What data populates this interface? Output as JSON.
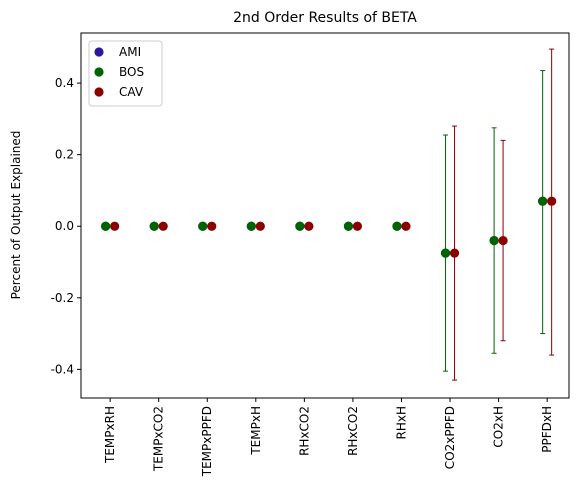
{
  "chart_data": {
    "type": "scatter",
    "title": "2nd Order Results of BETA",
    "xlabel": "",
    "ylabel": "Percent of Output Explained",
    "categories": [
      "TEMPxRH",
      "TEMPxCO2",
      "TEMPxPPFD",
      "TEMPxH",
      "RHxCO2",
      "RHxCO2",
      "RHxH",
      "CO2xPPFD",
      "CO2xH",
      "PPFDxH"
    ],
    "ylim": [
      -0.48,
      0.54
    ],
    "yticks": [
      "-0.4",
      "-0.2",
      "0.0",
      "0.2",
      "0.4"
    ],
    "legend_position": "top-left",
    "grid": false,
    "series": [
      {
        "name": "AMI",
        "color": "#2a1a9a",
        "values": [
          0,
          0,
          0,
          0,
          0,
          0,
          0,
          -0.075,
          -0.04,
          0.07
        ],
        "lower": [
          0,
          0,
          0,
          0,
          0,
          0,
          0,
          -0.075,
          -0.04,
          0.07
        ],
        "upper": [
          0,
          0,
          0,
          0,
          0,
          0,
          0,
          -0.075,
          -0.04,
          0.07
        ]
      },
      {
        "name": "BOS",
        "color": "#006400",
        "values": [
          0,
          0,
          0,
          0,
          0,
          0,
          0,
          -0.075,
          -0.04,
          0.07
        ],
        "lower": [
          0,
          0,
          0,
          0,
          0,
          0,
          0,
          -0.405,
          -0.355,
          -0.3
        ],
        "upper": [
          0,
          0,
          0,
          0,
          0,
          0,
          0,
          0.255,
          0.275,
          0.435
        ]
      },
      {
        "name": "CAV",
        "color": "#8b0000",
        "values": [
          0,
          0,
          0,
          0,
          0,
          0,
          0,
          -0.075,
          -0.04,
          0.07
        ],
        "lower": [
          0,
          0,
          0,
          0,
          0,
          0,
          0,
          -0.43,
          -0.32,
          -0.36
        ],
        "upper": [
          0,
          0,
          0,
          0,
          0,
          0,
          0,
          0.28,
          0.24,
          0.495
        ]
      }
    ]
  }
}
